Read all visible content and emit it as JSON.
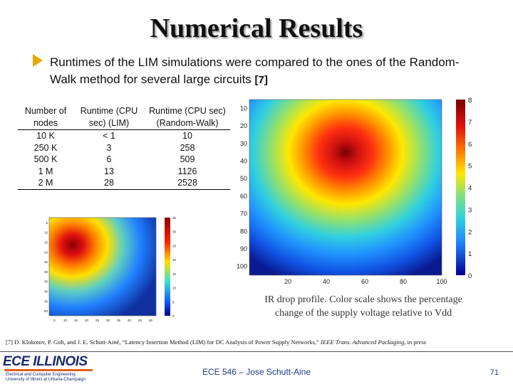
{
  "slide": {
    "title": "Numerical Results",
    "bullet": {
      "text": "Runtimes of the LIM simulations were compared to the ones of the Random-Walk method for several large circuits",
      "ref": "[7]"
    },
    "table": {
      "headers": [
        "Number of nodes",
        "Runtime (CPU sec) (LIM)",
        "Runtime (CPU sec) (Random-Walk)"
      ],
      "rows": [
        [
          "10 K",
          "< 1",
          "10"
        ],
        [
          "250 K",
          "3",
          "258"
        ],
        [
          "500 K",
          "6",
          "509"
        ],
        [
          "1 M",
          "13",
          "1126"
        ],
        [
          "2 M",
          "28",
          "2528"
        ]
      ]
    },
    "ir_map": {
      "x_ticks": [
        "20",
        "40",
        "60",
        "80",
        "100"
      ],
      "y_ticks": [
        "10",
        "20",
        "30",
        "40",
        "50",
        "60",
        "70",
        "80",
        "90",
        "100"
      ],
      "colorbar_ticks": [
        "8",
        "7",
        "6",
        "5",
        "4",
        "3",
        "2",
        "1",
        "0"
      ]
    },
    "small_map": {
      "x_ticks": [
        "5",
        "10",
        "15",
        "20",
        "25",
        "30",
        "35",
        "40",
        "45",
        "50"
      ],
      "y_ticks": [
        "5",
        "10",
        "15",
        "20",
        "25",
        "30",
        "35",
        "40",
        "45",
        "50"
      ],
      "colorbar_ticks": [
        "35",
        "30",
        "25",
        "20",
        "15",
        "10",
        "5",
        "0"
      ]
    },
    "caption": "IR drop profile. Color scale shows the percentage change of the supply voltage relative to Vdd",
    "reference": {
      "before": "[7] D. Klokotov, P. Goh, and J. E. Schutt-Ainé, “Latency Insertion Method (LIM) for DC Analysis of Power Supply Networks,” ",
      "journal": "IEEE Trans. Advanced Packaging",
      "after": ", in press"
    },
    "footer": {
      "logo_main": "ECE ILLINOIS",
      "logo_sub1": "Electrical and Computer Engineering",
      "logo_sub2": "University of Illinois at Urbana-Champaign",
      "course": "ECE 546 – Jose Schutt-Aine",
      "page": "71"
    }
  }
}
